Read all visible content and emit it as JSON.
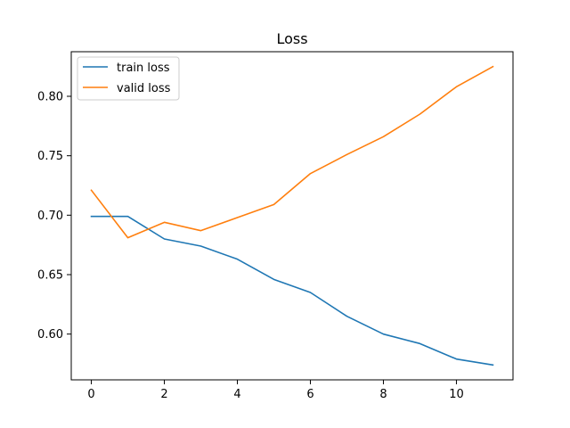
{
  "chart_data": {
    "type": "line",
    "title": "Loss",
    "xlabel": "",
    "ylabel": "",
    "xlim": [
      -0.55,
      11.55
    ],
    "ylim": [
      0.5615,
      0.8375
    ],
    "x": [
      0,
      1,
      2,
      3,
      4,
      5,
      6,
      7,
      8,
      9,
      10,
      11
    ],
    "x_ticks": [
      0,
      2,
      4,
      6,
      8,
      10
    ],
    "x_tick_labels": [
      "0",
      "2",
      "4",
      "6",
      "8",
      "10"
    ],
    "y_ticks": [
      0.6,
      0.65,
      0.7,
      0.75,
      0.8
    ],
    "y_tick_labels": [
      "0.60",
      "0.65",
      "0.70",
      "0.75",
      "0.80"
    ],
    "grid": false,
    "legend_position": "top-left",
    "series": [
      {
        "name": "train loss",
        "color": "#1f77b4",
        "values": [
          0.699,
          0.699,
          0.68,
          0.674,
          0.663,
          0.646,
          0.635,
          0.615,
          0.6,
          0.592,
          0.579,
          0.574
        ]
      },
      {
        "name": "valid loss",
        "color": "#ff7f0e",
        "values": [
          0.721,
          0.681,
          0.694,
          0.687,
          0.698,
          0.709,
          0.735,
          0.751,
          0.766,
          0.785,
          0.808,
          0.825
        ]
      }
    ]
  }
}
